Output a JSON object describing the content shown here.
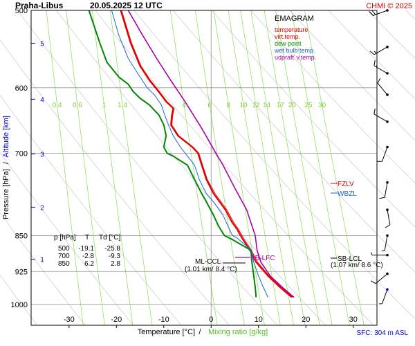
{
  "header": {
    "station": "Praha-Libus",
    "datetime": "20.05.2025 12 UTC",
    "copyright": "CHMI © 2025"
  },
  "legend": {
    "title": "EMAGRAM",
    "items": [
      {
        "label": "temperature",
        "color": "#e00000"
      },
      {
        "label": "virt.temp.",
        "color": "#e00000"
      },
      {
        "label": "dew point",
        "color": "#008800"
      },
      {
        "label": "wet bulb temp.",
        "color": "#1a66dd"
      },
      {
        "label": "udprafť v.temp.",
        "color": "#aa00aa"
      }
    ]
  },
  "axes": {
    "xlabel_temperature": "Temperature [°C]",
    "xlabel_separator": "/",
    "xlabel_mixing": "Mixing ratio [g/kg]",
    "ylabel_pressure": "Pressure [hPa]",
    "ylabel_separator": "/",
    "ylabel_altitude": "Altitude [km]",
    "sfc_note": "SFC: 304 m ASL"
  },
  "table": {
    "header": [
      "p [hPa]",
      "T",
      "Td [°C]"
    ],
    "rows": [
      [
        "500",
        "-19.1",
        "-25.8"
      ],
      [
        "700",
        "-2.8",
        "-9.3"
      ],
      [
        "850",
        "6.2",
        "2.8"
      ]
    ]
  },
  "annotations": {
    "fzlv": "FZLV",
    "wbzl": "WBZL",
    "sb_lfc": "SB-LFC",
    "ml_ccl": "ML-CCL",
    "ml_ccl_detail": "(1.01 km/ 8.4 °C)",
    "sb_lcl": "SB-LCL",
    "sb_lcl_detail": "(1.07 km/ 8.6 °C)"
  },
  "colors": {
    "temperature": "#e00000",
    "dewpoint": "#008800",
    "wetbulb": "#1a66dd",
    "parcel": "#aa00aa",
    "mixing": "#99dd66",
    "mixing_label": "#88cc33",
    "dry_adiabat": "#cfcfcf",
    "grid": "#999999",
    "altitude": "#0000cc",
    "title_red": "#cc0000",
    "sfc_blue": "#0000cc"
  },
  "chart_data": {
    "type": "line",
    "x_axis": {
      "label": "Temperature [°C]",
      "range": [
        -38,
        35
      ],
      "ticks": [
        -30,
        -20,
        -10,
        0,
        10,
        20,
        30
      ]
    },
    "y_axis": {
      "label": "Pressure [hPa]",
      "scale": "log",
      "range": [
        1050,
        500
      ],
      "ticks": [
        500,
        600,
        700,
        850,
        925,
        1000
      ]
    },
    "altitude_ticks_km": [
      1,
      2,
      3,
      4,
      5
    ],
    "mixing_ratio_labels": [
      "0.4",
      "0.6",
      "1",
      "1.4",
      "4",
      "6",
      "8",
      "10",
      "12",
      "14",
      "17",
      "20",
      "25",
      "30"
    ],
    "series": [
      {
        "name": "temperature",
        "points": [
          [
            17.0,
            983
          ],
          [
            14.5,
            960
          ],
          [
            12.0,
            935
          ],
          [
            9.5,
            905
          ],
          [
            8.2,
            880
          ],
          [
            6.5,
            855
          ],
          [
            6.2,
            850
          ],
          [
            5.5,
            838
          ],
          [
            4.5,
            825
          ],
          [
            3.0,
            800
          ],
          [
            0.5,
            770
          ],
          [
            -1.0,
            745
          ],
          [
            -2.0,
            720
          ],
          [
            -2.8,
            700
          ],
          [
            -4.0,
            690
          ],
          [
            -7.0,
            672
          ],
          [
            -8.5,
            655
          ],
          [
            -8.3,
            640
          ],
          [
            -8.0,
            630
          ],
          [
            -9.5,
            620
          ],
          [
            -11.5,
            602
          ],
          [
            -13.0,
            590
          ],
          [
            -15.0,
            570
          ],
          [
            -17.0,
            540
          ],
          [
            -19.1,
            500
          ]
        ]
      },
      {
        "name": "virt.temp.",
        "points": [
          [
            17.2,
            983
          ],
          [
            14.8,
            960
          ],
          [
            12.3,
            935
          ],
          [
            9.8,
            905
          ],
          [
            8.5,
            880
          ],
          [
            6.8,
            855
          ],
          [
            6.5,
            850
          ],
          [
            5.8,
            838
          ],
          [
            4.8,
            825
          ],
          [
            3.3,
            800
          ],
          [
            0.8,
            770
          ],
          [
            -0.8,
            745
          ],
          [
            -1.8,
            720
          ],
          [
            -2.6,
            700
          ],
          [
            -3.8,
            690
          ],
          [
            -6.8,
            672
          ],
          [
            -8.3,
            655
          ],
          [
            -8.1,
            640
          ],
          [
            -7.8,
            630
          ],
          [
            -9.3,
            620
          ],
          [
            -11.3,
            602
          ],
          [
            -12.8,
            590
          ],
          [
            -14.8,
            570
          ],
          [
            -16.8,
            540
          ],
          [
            -18.9,
            500
          ]
        ]
      },
      {
        "name": "dew point",
        "points": [
          [
            9.5,
            983
          ],
          [
            9.3,
            960
          ],
          [
            9.0,
            935
          ],
          [
            8.6,
            905
          ],
          [
            8.4,
            880
          ],
          [
            4.5,
            858
          ],
          [
            2.8,
            850
          ],
          [
            1.5,
            830
          ],
          [
            0.5,
            810
          ],
          [
            -1.0,
            785
          ],
          [
            -2.0,
            770
          ],
          [
            -3.5,
            745
          ],
          [
            -5.0,
            720
          ],
          [
            -8.0,
            705
          ],
          [
            -9.3,
            700
          ],
          [
            -10.0,
            690
          ],
          [
            -9.5,
            672
          ],
          [
            -10.0,
            655
          ],
          [
            -11.0,
            640
          ],
          [
            -13.0,
            625
          ],
          [
            -15.0,
            615
          ],
          [
            -16.5,
            605
          ],
          [
            -17.5,
            595
          ],
          [
            -19.5,
            585
          ],
          [
            -22.0,
            565
          ],
          [
            -23.5,
            540
          ],
          [
            -25.8,
            500
          ]
        ]
      },
      {
        "name": "wet bulb temp.",
        "points": [
          [
            12.0,
            983
          ],
          [
            11.0,
            960
          ],
          [
            10.0,
            935
          ],
          [
            9.0,
            905
          ],
          [
            8.5,
            880
          ],
          [
            5.5,
            855
          ],
          [
            4.5,
            850
          ],
          [
            3.5,
            830
          ],
          [
            2.5,
            810
          ],
          [
            0.5,
            785
          ],
          [
            -1.0,
            770
          ],
          [
            -2.5,
            745
          ],
          [
            -3.5,
            720
          ],
          [
            -5.5,
            700
          ],
          [
            -6.5,
            690
          ],
          [
            -8.0,
            672
          ],
          [
            -9.0,
            655
          ],
          [
            -9.8,
            640
          ],
          [
            -10.5,
            625
          ],
          [
            -12.0,
            610
          ],
          [
            -13.5,
            600
          ],
          [
            -15.5,
            580
          ],
          [
            -17.5,
            560
          ],
          [
            -19.5,
            530
          ],
          [
            -21.0,
            500
          ]
        ]
      },
      {
        "name": "udprafť v.temp.",
        "points": [
          [
            17.5,
            983
          ],
          [
            15.0,
            960
          ],
          [
            12.5,
            935
          ],
          [
            10.5,
            905
          ],
          [
            9.7,
            880
          ],
          [
            9.3,
            850
          ],
          [
            7.5,
            800
          ],
          [
            5.0,
            760
          ],
          [
            2.5,
            720
          ],
          [
            1.0,
            700
          ],
          [
            -2.0,
            660
          ],
          [
            -5.5,
            620
          ],
          [
            -8.5,
            590
          ],
          [
            -11.5,
            560
          ],
          [
            -14.5,
            530
          ],
          [
            -17.5,
            500
          ]
        ]
      }
    ],
    "wind_barbs": [
      {
        "p": 500,
        "dir": 250,
        "speed": 20
      },
      {
        "p": 545,
        "dir": 240,
        "speed": 15
      },
      {
        "p": 580,
        "dir": 300,
        "speed": 15
      },
      {
        "p": 610,
        "dir": 320,
        "speed": 10
      },
      {
        "p": 650,
        "dir": 300,
        "speed": 10
      },
      {
        "p": 690,
        "dir": 200,
        "speed": 10
      },
      {
        "p": 750,
        "dir": 190,
        "speed": 10
      },
      {
        "p": 800,
        "dir": 170,
        "speed": 10
      },
      {
        "p": 850,
        "dir": 190,
        "speed": 5
      },
      {
        "p": 890,
        "dir": 270,
        "speed": 5
      },
      {
        "p": 930,
        "dir": 230,
        "speed": 10
      },
      {
        "p": 965,
        "dir": 200,
        "speed": 5
      }
    ]
  }
}
